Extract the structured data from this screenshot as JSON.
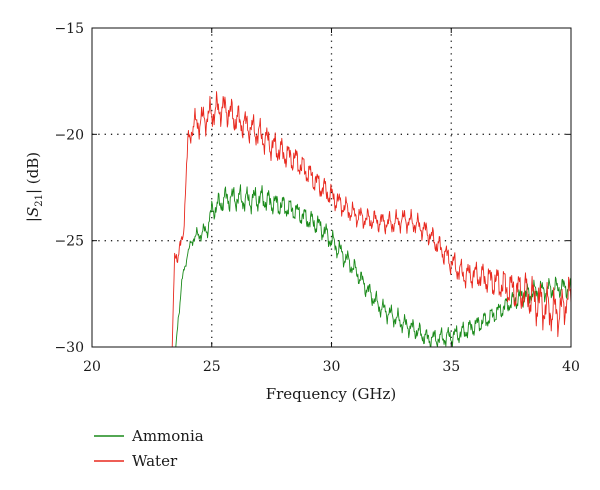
{
  "chart_data": {
    "type": "line",
    "xlabel": "Frequency (GHz)",
    "ylabel": {
      "prefix": "|",
      "symbol": "S",
      "subscript": "21",
      "suffix": "| (dB)"
    },
    "xlim": [
      20,
      40
    ],
    "ylim": [
      -30,
      -15
    ],
    "xticks": [
      20,
      25,
      30,
      35,
      40
    ],
    "yticks": [
      -30,
      -25,
      -20,
      -15
    ],
    "xtick_labels": [
      "20",
      "25",
      "30",
      "35",
      "40"
    ],
    "ytick_labels": [
      "−30",
      "−25",
      "−20",
      "−15"
    ],
    "grid": "dotted at x = 25, 30, 35 and y = −20, −25",
    "legend_position": "bottom-left, below the plot",
    "series": [
      {
        "name": "Ammonia",
        "color": "#1a8a1a",
        "x": [
          23.5,
          23.6,
          23.8,
          24.0,
          24.2,
          24.5,
          24.8,
          25.0,
          25.3,
          25.6,
          26.0,
          26.5,
          27.0,
          27.5,
          28.0,
          28.5,
          29.0,
          29.5,
          30.0,
          30.5,
          31.0,
          31.5,
          32.0,
          32.5,
          33.0,
          33.5,
          34.0,
          34.5,
          35.0,
          35.5,
          36.0,
          36.5,
          37.0,
          37.5,
          38.0,
          38.5,
          39.0,
          39.5,
          40.0
        ],
        "y": [
          -30.0,
          -28.6,
          -26.6,
          -25.6,
          -24.9,
          -24.7,
          -24.5,
          -23.6,
          -23.3,
          -23.0,
          -23.0,
          -23.1,
          -23.0,
          -23.2,
          -23.4,
          -23.6,
          -24.0,
          -24.3,
          -25.0,
          -25.7,
          -26.4,
          -27.3,
          -28.1,
          -28.5,
          -28.9,
          -29.2,
          -29.6,
          -29.6,
          -29.5,
          -29.3,
          -29.0,
          -28.7,
          -28.3,
          -27.9,
          -27.6,
          -27.4,
          -27.3,
          -27.2,
          -27.2
        ],
        "amplitude": [
          0,
          0.3,
          0.25,
          0.15,
          0.3,
          0.35,
          0.4,
          0.5,
          0.55,
          0.6,
          0.6,
          0.6,
          0.6,
          0.55,
          0.55,
          0.5,
          0.5,
          0.5,
          0.5,
          0.5,
          0.45,
          0.45,
          0.45,
          0.45,
          0.45,
          0.45,
          0.45,
          0.45,
          0.45,
          0.45,
          0.45,
          0.45,
          0.45,
          0.45,
          0.5,
          0.5,
          0.5,
          0.5,
          0.5
        ]
      },
      {
        "name": "Water",
        "color": "#e8281e",
        "x": [
          23.35,
          23.45,
          23.6,
          23.8,
          23.9,
          24.0,
          24.2,
          24.5,
          24.8,
          25.0,
          25.3,
          25.6,
          26.0,
          26.5,
          27.0,
          27.5,
          28.0,
          28.5,
          29.0,
          29.5,
          30.0,
          30.5,
          31.0,
          31.5,
          32.0,
          32.5,
          33.0,
          33.5,
          34.0,
          34.5,
          35.0,
          35.5,
          36.0,
          36.5,
          37.0,
          37.5,
          38.0,
          38.5,
          39.0,
          39.5,
          40.0
        ],
        "y": [
          -30.0,
          -25.8,
          -25.6,
          -24.9,
          -22.6,
          -20.5,
          -19.6,
          -19.4,
          -19.2,
          -19.0,
          -18.8,
          -18.8,
          -19.3,
          -19.6,
          -20.0,
          -20.5,
          -20.9,
          -21.2,
          -21.8,
          -22.4,
          -22.9,
          -23.4,
          -23.8,
          -24.0,
          -24.1,
          -24.2,
          -24.0,
          -24.2,
          -24.6,
          -25.3,
          -26.0,
          -26.6,
          -26.6,
          -26.8,
          -27.0,
          -27.3,
          -27.4,
          -27.8,
          -28.2,
          -28.4,
          -27.5
        ],
        "amplitude": [
          0,
          0.4,
          0.4,
          0.4,
          0.6,
          0.5,
          0.6,
          0.7,
          0.7,
          0.75,
          0.75,
          0.75,
          0.75,
          0.7,
          0.7,
          0.7,
          0.65,
          0.65,
          0.6,
          0.6,
          0.55,
          0.5,
          0.5,
          0.5,
          0.5,
          0.5,
          0.5,
          0.5,
          0.5,
          0.55,
          0.6,
          0.6,
          0.6,
          0.7,
          0.8,
          0.9,
          1.0,
          1.1,
          1.1,
          1.0,
          0.9
        ]
      }
    ]
  }
}
